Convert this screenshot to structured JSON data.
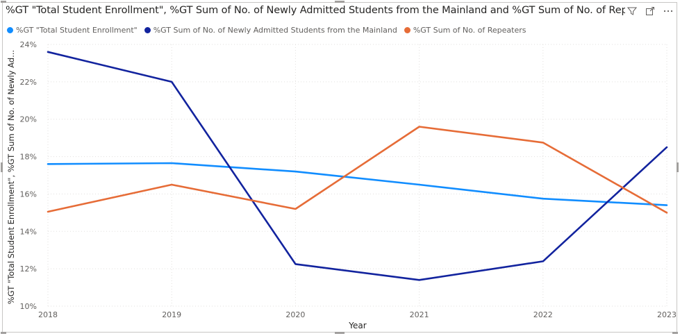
{
  "visual": {
    "title": "%GT \"Total Student Enrollment\", %GT Sum of No. of Newly Admitted Students from the Mainland and %GT Sum of No. of Repeaters",
    "icons": [
      "filter-icon",
      "focus-mode-icon",
      "more-options-icon"
    ]
  },
  "chart_data": {
    "type": "line",
    "title": "%GT \"Total Student Enrollment\", %GT Sum of No. of Newly Admitted Students from the Mainland and %GT Sum of No. of Repeaters",
    "xlabel": "Year",
    "ylabel": "%GT \"Total Student Enrollment\", %GT Sum of No. of Newly Ad...",
    "x": [
      "2018",
      "2019",
      "2020",
      "2021",
      "2022",
      "2023"
    ],
    "ylim": [
      0.1,
      0.24
    ],
    "y_ticks": [
      0.1,
      0.12,
      0.14,
      0.16,
      0.18,
      0.2,
      0.22,
      0.24
    ],
    "y_tick_labels": [
      "10%",
      "12%",
      "14%",
      "16%",
      "18%",
      "20%",
      "22%",
      "24%"
    ],
    "grid": true,
    "legend_position": "top-left",
    "series": [
      {
        "name": "%GT \"Total Student Enrollment\"",
        "color": "#118DFF",
        "values": [
          0.176,
          0.1765,
          0.172,
          0.165,
          0.1575,
          0.154
        ]
      },
      {
        "name": "%GT Sum of No. of Newly Admitted Students from the Mainland",
        "color": "#12239E",
        "values": [
          0.236,
          0.22,
          0.1225,
          0.114,
          0.124,
          0.185
        ]
      },
      {
        "name": "%GT Sum of No. of Repeaters",
        "color": "#E66C37",
        "values": [
          0.1505,
          0.165,
          0.152,
          0.196,
          0.1875,
          0.15
        ]
      }
    ]
  }
}
